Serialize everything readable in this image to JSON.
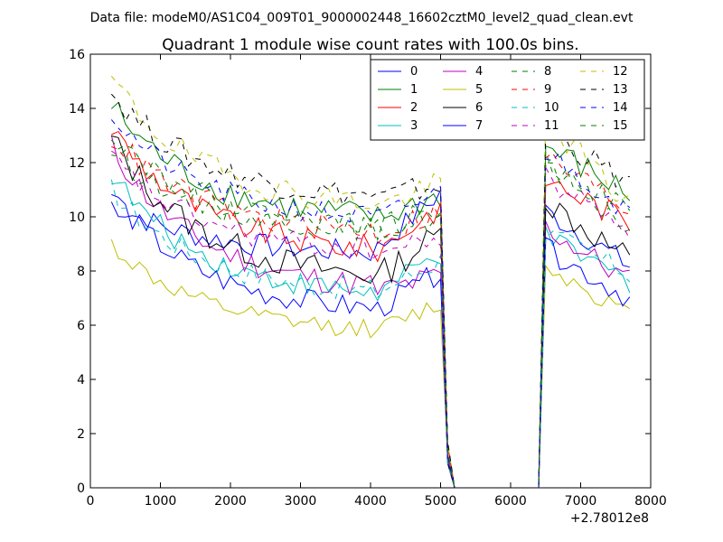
{
  "chart_data": {
    "type": "line",
    "suptitle": "Data file: modeM0/AS1C04_009T01_9000002448_16602cztM0_level2_quad_clean.evt",
    "title": "Quadrant 1 module wise count rates with 100.0s bins.",
    "xlabel": "",
    "ylabel": "",
    "x_offset_label": "+2.78012e8",
    "xlim": [
      0,
      8000
    ],
    "ylim": [
      0,
      16
    ],
    "xticks": [
      0,
      1000,
      2000,
      3000,
      4000,
      5000,
      6000,
      7000,
      8000
    ],
    "yticks": [
      0,
      2,
      4,
      6,
      8,
      10,
      12,
      14,
      16
    ],
    "legend_position": "top-right",
    "legend_columns": 4,
    "x": [
      300,
      400,
      500,
      600,
      700,
      800,
      900,
      1000,
      1100,
      1200,
      1300,
      1400,
      1500,
      1600,
      1700,
      1800,
      1900,
      2000,
      2100,
      2200,
      2300,
      2400,
      2500,
      2600,
      2700,
      2800,
      2900,
      3000,
      3100,
      3200,
      3300,
      3400,
      3500,
      3600,
      3700,
      3800,
      3900,
      4000,
      4100,
      4200,
      4300,
      4400,
      4500,
      4600,
      4700,
      4800,
      4900,
      5000,
      5100,
      5200,
      5300,
      5400,
      5500,
      5600,
      5700,
      5800,
      5900,
      6000,
      6100,
      6200,
      6300,
      6400,
      6500,
      6600,
      6700,
      6800,
      6900,
      7000,
      7100,
      7200,
      7300,
      7400,
      7500,
      7600,
      7700
    ],
    "series": [
      {
        "name": "0",
        "color": "#0000ff",
        "dash": "solid",
        "start": 10.5,
        "stable": 8.6,
        "end": 10.9,
        "amp": 0.45,
        "post": 10.2,
        "tail": 8.2,
        "pre": 1.2
      },
      {
        "name": "1",
        "color": "#007f00",
        "dash": "solid",
        "start": 14.1,
        "stable": 9.8,
        "end": 10.8,
        "amp": 0.55,
        "post": 12.6,
        "tail": 10.8,
        "pre": 1.5
      },
      {
        "name": "2",
        "color": "#ff0000",
        "dash": "solid",
        "start": 13.3,
        "stable": 8.6,
        "end": 10.4,
        "amp": 0.5,
        "post": 11.4,
        "tail": 9.8,
        "pre": 1.3
      },
      {
        "name": "3",
        "color": "#00bfbf",
        "dash": "solid",
        "start": 11.6,
        "stable": 7.0,
        "end": 8.6,
        "amp": 0.45,
        "post": 9.2,
        "tail": 7.6,
        "pre": 1.2
      },
      {
        "name": "4",
        "color": "#bf00bf",
        "dash": "solid",
        "start": 12.6,
        "stable": 7.2,
        "end": 7.8,
        "amp": 0.5,
        "post": 9.6,
        "tail": 7.6,
        "pre": 1.2
      },
      {
        "name": "5",
        "color": "#bfbf00",
        "dash": "solid",
        "start": 9.0,
        "stable": 5.7,
        "end": 6.8,
        "amp": 0.35,
        "post": 8.2,
        "tail": 6.4,
        "pre": 1.0
      },
      {
        "name": "6",
        "color": "#000000",
        "dash": "solid",
        "start": 12.9,
        "stable": 7.6,
        "end": 9.4,
        "amp": 0.55,
        "post": 10.6,
        "tail": 8.4,
        "pre": 1.2
      },
      {
        "name": "7",
        "color": "#0000ff",
        "dash": "solid",
        "start": 10.9,
        "stable": 6.4,
        "end": 8.0,
        "amp": 0.45,
        "post": 8.8,
        "tail": 7.0,
        "pre": 1.2
      },
      {
        "name": "8",
        "color": "#007f00",
        "dash": "dashed",
        "start": 12.5,
        "stable": 9.4,
        "end": 10.0,
        "amp": 0.45,
        "post": 11.8,
        "tail": 9.6,
        "pre": 1.2
      },
      {
        "name": "9",
        "color": "#ff0000",
        "dash": "dashed",
        "start": 13.0,
        "stable": 9.3,
        "end": 10.2,
        "amp": 0.5,
        "post": 12.2,
        "tail": 10.3,
        "pre": 1.3
      },
      {
        "name": "10",
        "color": "#00bfbf",
        "dash": "dashed",
        "start": 11.0,
        "stable": 7.1,
        "end": 8.4,
        "amp": 0.45,
        "post": 9.4,
        "tail": 7.9,
        "pre": 1.2
      },
      {
        "name": "11",
        "color": "#bf00bf",
        "dash": "dashed",
        "start": 12.2,
        "stable": 8.6,
        "end": 9.2,
        "amp": 0.45,
        "post": 11.4,
        "tail": 9.6,
        "pre": 1.2
      },
      {
        "name": "12",
        "color": "#bfbf00",
        "dash": "dashed",
        "start": 15.1,
        "stable": 10.3,
        "end": 11.2,
        "amp": 0.5,
        "post": 13.6,
        "tail": 10.4,
        "pre": 1.5
      },
      {
        "name": "13",
        "color": "#000000",
        "dash": "dashed",
        "start": 14.6,
        "stable": 10.6,
        "end": 11.2,
        "amp": 0.5,
        "post": 13.2,
        "tail": 11.2,
        "pre": 1.5
      },
      {
        "name": "14",
        "color": "#0000ff",
        "dash": "dashed",
        "start": 13.8,
        "stable": 9.8,
        "end": 10.9,
        "amp": 0.45,
        "post": 12.4,
        "tail": 10.2,
        "pre": 1.4
      },
      {
        "name": "15",
        "color": "#007f00",
        "dash": "dashed",
        "start": 13.2,
        "stable": 9.5,
        "end": 10.3,
        "amp": 0.45,
        "post": 12.0,
        "tail": 10.2,
        "pre": 1.4
      }
    ]
  }
}
